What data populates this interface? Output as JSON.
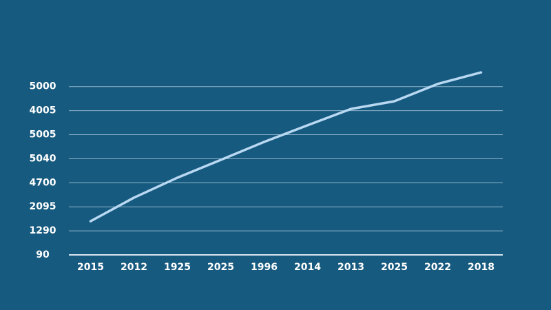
{
  "chart_data": {
    "type": "line",
    "categories": [
      "2015",
      "2012",
      "1925",
      "2025",
      "1996",
      "2014",
      "2013",
      "2025",
      "2022",
      "2018"
    ],
    "values": [
      1.4,
      2.38,
      3.21,
      3.95,
      4.7,
      5.39,
      6.07,
      6.39,
      7.11,
      7.59
    ],
    "color": "#b9d9f3",
    "ylim": [
      0,
      8
    ],
    "yticks": [
      {
        "value": 0,
        "label": "90"
      },
      {
        "value": 1,
        "label": "1290"
      },
      {
        "value": 2,
        "label": "2095"
      },
      {
        "value": 3,
        "label": "4700"
      },
      {
        "value": 4,
        "label": "5040"
      },
      {
        "value": 5,
        "label": "5005"
      },
      {
        "value": 6,
        "label": "4005"
      },
      {
        "value": 7,
        "label": "5000"
      }
    ],
    "grid": true
  }
}
